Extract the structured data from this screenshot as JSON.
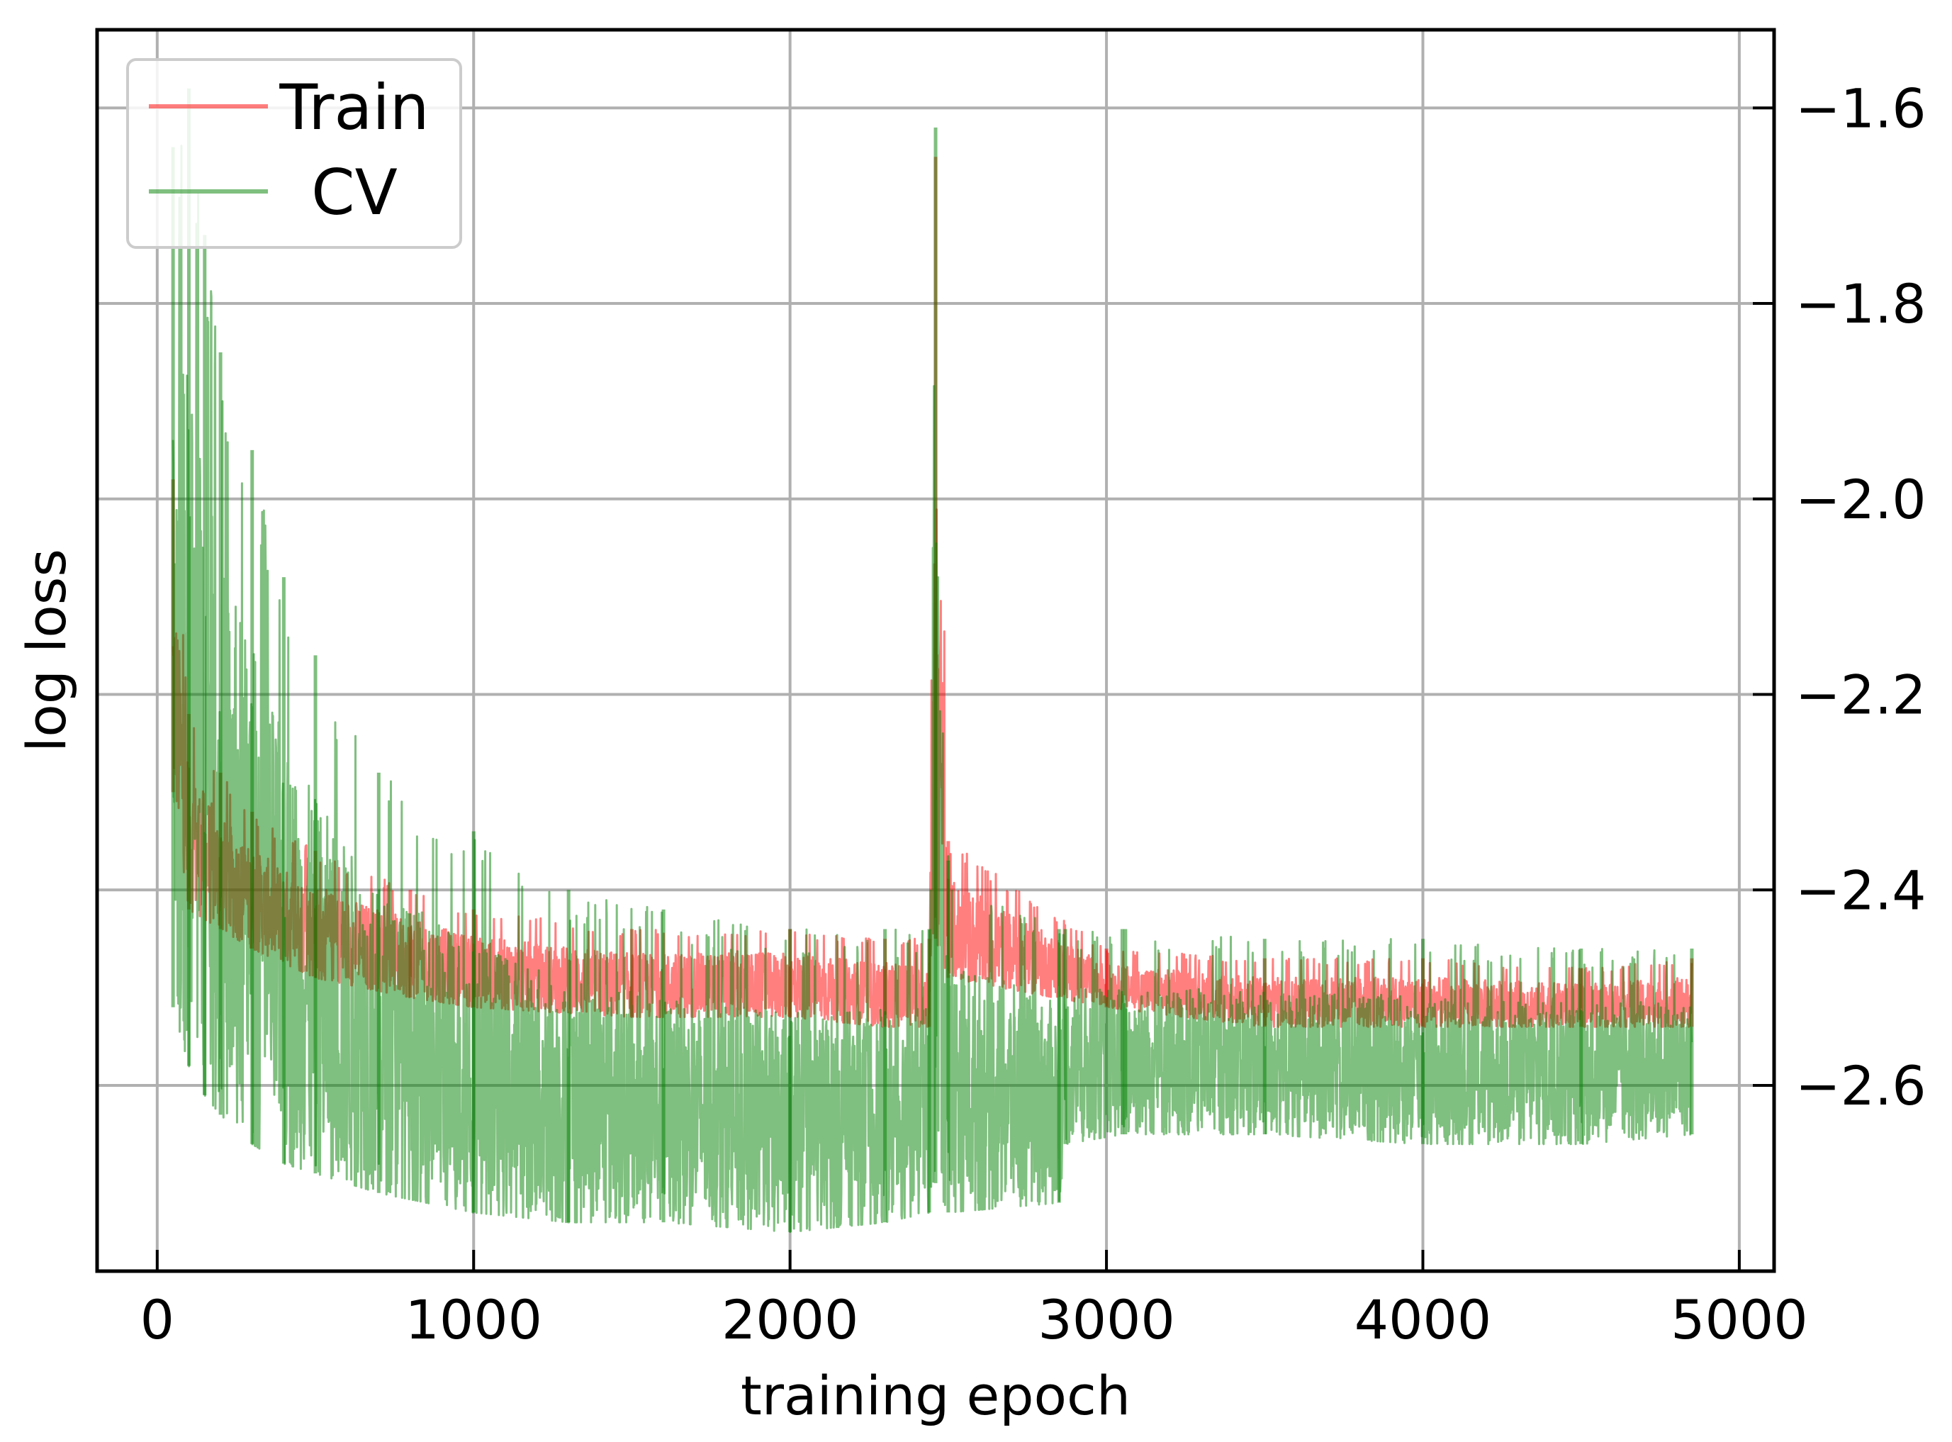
{
  "chart_data": {
    "type": "line",
    "title": "",
    "xlabel": "training epoch",
    "ylabel": "log loss",
    "xlim": [
      -190,
      5110
    ],
    "ylim": [
      -2.79,
      -1.52
    ],
    "x_ticks": [
      0,
      1000,
      2000,
      3000,
      4000,
      5000
    ],
    "x_tick_labels": [
      "0",
      "1000",
      "2000",
      "3000",
      "4000",
      "5000"
    ],
    "y_ticks": [
      -1.6,
      -1.8,
      -2.0,
      -2.2,
      -2.4,
      -2.6
    ],
    "y_tick_labels": [
      "−1.6",
      "−1.8",
      "−2.0",
      "−2.2",
      "−2.4",
      "−2.6"
    ],
    "y_axis_side": "right",
    "grid": true,
    "legend": {
      "position": "top-left",
      "entries": [
        {
          "label": "Train",
          "color": "#ff0000"
        },
        {
          "label": "CV",
          "color": "#008000"
        }
      ]
    },
    "series": [
      {
        "name": "Train",
        "color": "#ff0000",
        "opacity": 0.5,
        "x": [
          50,
          100,
          200,
          300,
          500,
          800,
          1000,
          1500,
          2000,
          2300,
          2440,
          2460,
          2500,
          3000,
          3500,
          4000,
          4500,
          4850
        ],
        "upper": [
          -1.98,
          -2.22,
          -2.28,
          -2.32,
          -2.36,
          -2.4,
          -2.42,
          -2.44,
          -2.44,
          -2.45,
          -2.45,
          -1.65,
          -2.35,
          -2.46,
          -2.47,
          -2.47,
          -2.48,
          -2.47
        ],
        "lower": [
          -2.3,
          -2.42,
          -2.44,
          -2.46,
          -2.49,
          -2.51,
          -2.52,
          -2.53,
          -2.53,
          -2.54,
          -2.54,
          -2.45,
          -2.49,
          -2.52,
          -2.54,
          -2.54,
          -2.54,
          -2.54
        ]
      },
      {
        "name": "CV",
        "color": "#008000",
        "opacity": 0.5,
        "x": [
          50,
          100,
          150,
          200,
          300,
          400,
          500,
          700,
          1000,
          1300,
          1600,
          2000,
          2300,
          2440,
          2460,
          2500,
          2850,
          2870,
          3050,
          3060,
          3500,
          4000,
          4500,
          4850
        ],
        "upper": [
          -1.64,
          -1.58,
          -1.73,
          -1.85,
          -1.95,
          -2.08,
          -2.16,
          -2.28,
          -2.34,
          -2.4,
          -2.42,
          -2.44,
          -2.44,
          -2.44,
          -1.62,
          -2.37,
          -2.44,
          -2.44,
          -2.44,
          -2.44,
          -2.45,
          -2.45,
          -2.46,
          -2.46
        ],
        "lower": [
          -2.52,
          -2.58,
          -2.61,
          -2.63,
          -2.66,
          -2.68,
          -2.69,
          -2.71,
          -2.73,
          -2.74,
          -2.74,
          -2.75,
          -2.74,
          -2.73,
          -2.7,
          -2.73,
          -2.72,
          -2.66,
          -2.65,
          -2.65,
          -2.65,
          -2.66,
          -2.66,
          -2.65
        ]
      }
    ]
  }
}
